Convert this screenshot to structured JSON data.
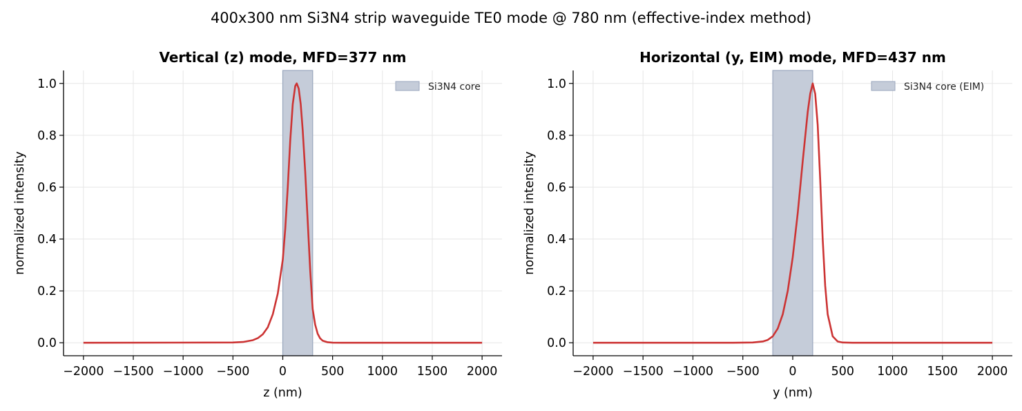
{
  "figure": {
    "suptitle": "400x300 nm Si3N4 strip waveguide TE0 mode @ 780 nm (effective-index method)"
  },
  "chart_data": [
    {
      "type": "line",
      "title": "Vertical (z) mode, MFD=377 nm",
      "xlabel": "z (nm)",
      "ylabel": "normalized intensity",
      "xlim": [
        -2200,
        2200
      ],
      "ylim": [
        -0.05,
        1.05
      ],
      "xticks": [
        -2000,
        -1500,
        -1000,
        -500,
        0,
        500,
        1000,
        1500,
        2000
      ],
      "xtick_labels": [
        "−2000",
        "−1500",
        "−1000",
        "−500",
        "0",
        "500",
        "1000",
        "1500",
        "2000"
      ],
      "yticks": [
        0.0,
        0.2,
        0.4,
        0.6,
        0.8,
        1.0
      ],
      "ytick_labels": [
        "0.0",
        "0.2",
        "0.4",
        "0.6",
        "0.8",
        "1.0"
      ],
      "grid": true,
      "legend_position": "top-right",
      "shaded_region": {
        "label": "Si3N4 core",
        "x": [
          0,
          300
        ],
        "color": "#c5ccd9",
        "edge_color": "#9aa6bd"
      },
      "series": [
        {
          "color": "#cc3333",
          "x": [
            -2000,
            -500,
            -400,
            -300,
            -250,
            -200,
            -150,
            -100,
            -50,
            0,
            25,
            50,
            75,
            100,
            125,
            140,
            160,
            180,
            200,
            225,
            250,
            275,
            300,
            325,
            350,
            375,
            400,
            450,
            500,
            600,
            2000
          ],
          "y": [
            0.0,
            0.001,
            0.003,
            0.01,
            0.018,
            0.033,
            0.06,
            0.11,
            0.19,
            0.32,
            0.44,
            0.6,
            0.78,
            0.92,
            0.99,
            1.0,
            0.98,
            0.92,
            0.82,
            0.66,
            0.47,
            0.28,
            0.13,
            0.07,
            0.035,
            0.017,
            0.008,
            0.002,
            0.0005,
            0.0,
            0.0
          ]
        }
      ]
    },
    {
      "type": "line",
      "title": "Horizontal (y, EIM) mode, MFD=437 nm",
      "xlabel": "y (nm)",
      "ylabel": "normalized intensity",
      "xlim": [
        -2200,
        2200
      ],
      "ylim": [
        -0.05,
        1.05
      ],
      "xticks": [
        -2000,
        -1500,
        -1000,
        -500,
        0,
        500,
        1000,
        1500,
        2000
      ],
      "xtick_labels": [
        "−2000",
        "−1500",
        "−1000",
        "−500",
        "0",
        "500",
        "1000",
        "1500",
        "2000"
      ],
      "yticks": [
        0.0,
        0.2,
        0.4,
        0.6,
        0.8,
        1.0
      ],
      "ytick_labels": [
        "0.0",
        "0.2",
        "0.4",
        "0.6",
        "0.8",
        "1.0"
      ],
      "grid": true,
      "legend_position": "top-right",
      "shaded_region": {
        "label": "Si3N4 core (EIM)",
        "x": [
          -200,
          200
        ],
        "color": "#c5ccd9",
        "edge_color": "#9aa6bd"
      },
      "series": [
        {
          "color": "#cc3333",
          "x": [
            -2000,
            -600,
            -400,
            -300,
            -250,
            -200,
            -150,
            -100,
            -50,
            0,
            50,
            100,
            150,
            175,
            200,
            225,
            250,
            275,
            300,
            325,
            350,
            400,
            450,
            500,
            600,
            2000
          ],
          "y": [
            0.0,
            0.0,
            0.001,
            0.005,
            0.011,
            0.025,
            0.055,
            0.11,
            0.2,
            0.33,
            0.5,
            0.7,
            0.89,
            0.96,
            1.0,
            0.96,
            0.84,
            0.63,
            0.4,
            0.22,
            0.11,
            0.025,
            0.005,
            0.001,
            0.0,
            0.0
          ]
        }
      ]
    }
  ]
}
